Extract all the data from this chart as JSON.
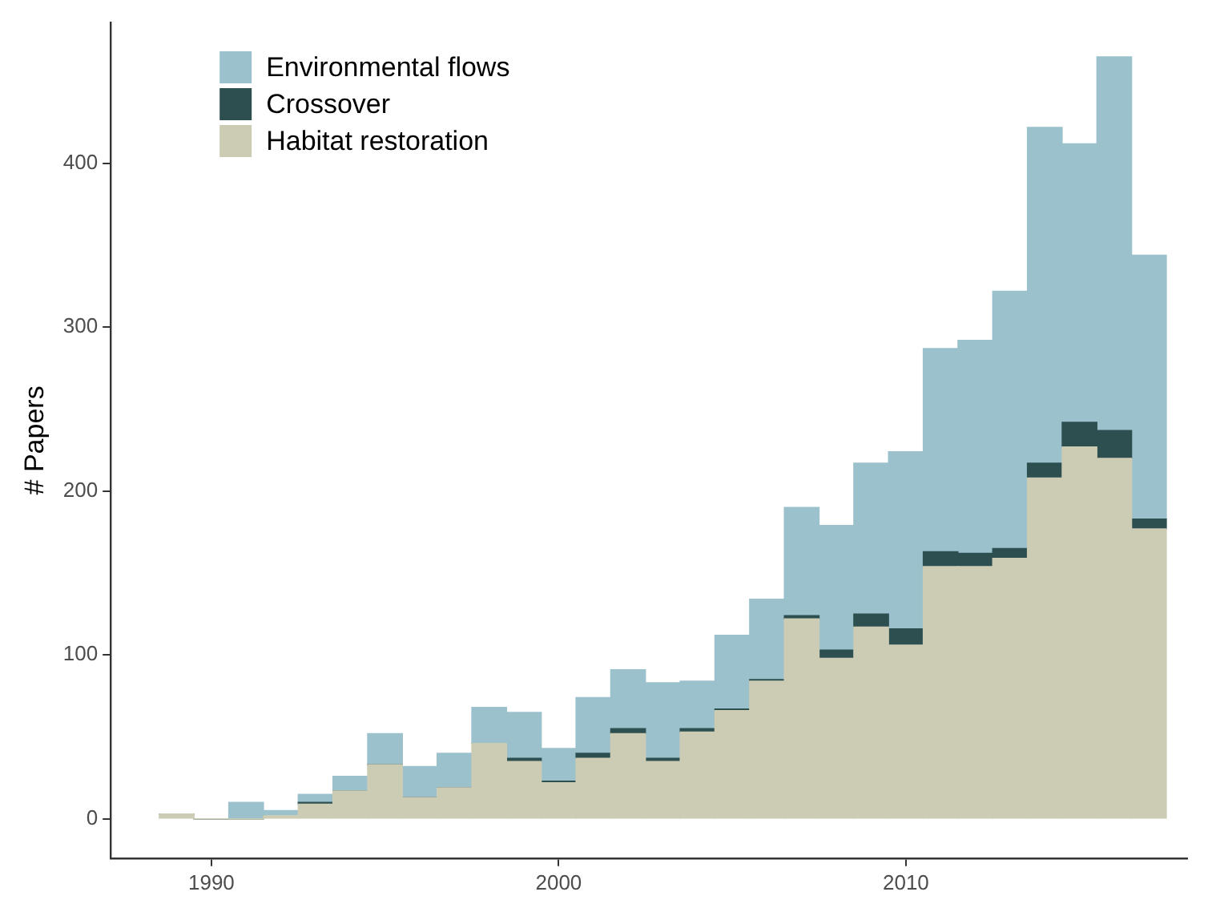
{
  "chart_data": {
    "type": "bar",
    "ylabel": "# Papers",
    "stacked": true,
    "legend": "top left",
    "grid": false,
    "x": [
      1989,
      1990,
      1991,
      1992,
      1993,
      1994,
      1995,
      1996,
      1997,
      1998,
      1999,
      2000,
      2001,
      2002,
      2003,
      2004,
      2005,
      2006,
      2007,
      2008,
      2009,
      2010,
      2011,
      2012,
      2013,
      2014,
      2015,
      2016,
      2017
    ],
    "series": [
      {
        "name": "Habitat restoration",
        "color": "#cccbb4",
        "values": [
          3,
          0,
          0,
          2,
          9,
          17,
          33,
          13,
          19,
          46,
          35,
          22,
          37,
          52,
          35,
          53,
          66,
          84,
          122,
          98,
          117,
          106,
          154,
          154,
          159,
          208,
          227,
          220,
          177
        ]
      },
      {
        "name": "Crossover",
        "color": "#2d4f50",
        "values": [
          0,
          0,
          0,
          0,
          1,
          0,
          0,
          0,
          0,
          0,
          2,
          1,
          3,
          3,
          2,
          2,
          1,
          1,
          2,
          5,
          8,
          10,
          9,
          8,
          6,
          9,
          15,
          17,
          6
        ]
      },
      {
        "name": "Environmental flows",
        "color": "#9bc1cc",
        "values": [
          0,
          0,
          10,
          3,
          5,
          9,
          19,
          19,
          21,
          22,
          28,
          20,
          34,
          36,
          46,
          29,
          45,
          49,
          66,
          76,
          92,
          108,
          124,
          130,
          157,
          205,
          170,
          228,
          161
        ]
      }
    ],
    "xlim": [
      1987.1,
      2018.1
    ],
    "xticks": [
      1990,
      2000,
      2010
    ],
    "ylim": [
      -24,
      486
    ],
    "yticks": [
      0,
      100,
      200,
      300,
      400
    ]
  }
}
